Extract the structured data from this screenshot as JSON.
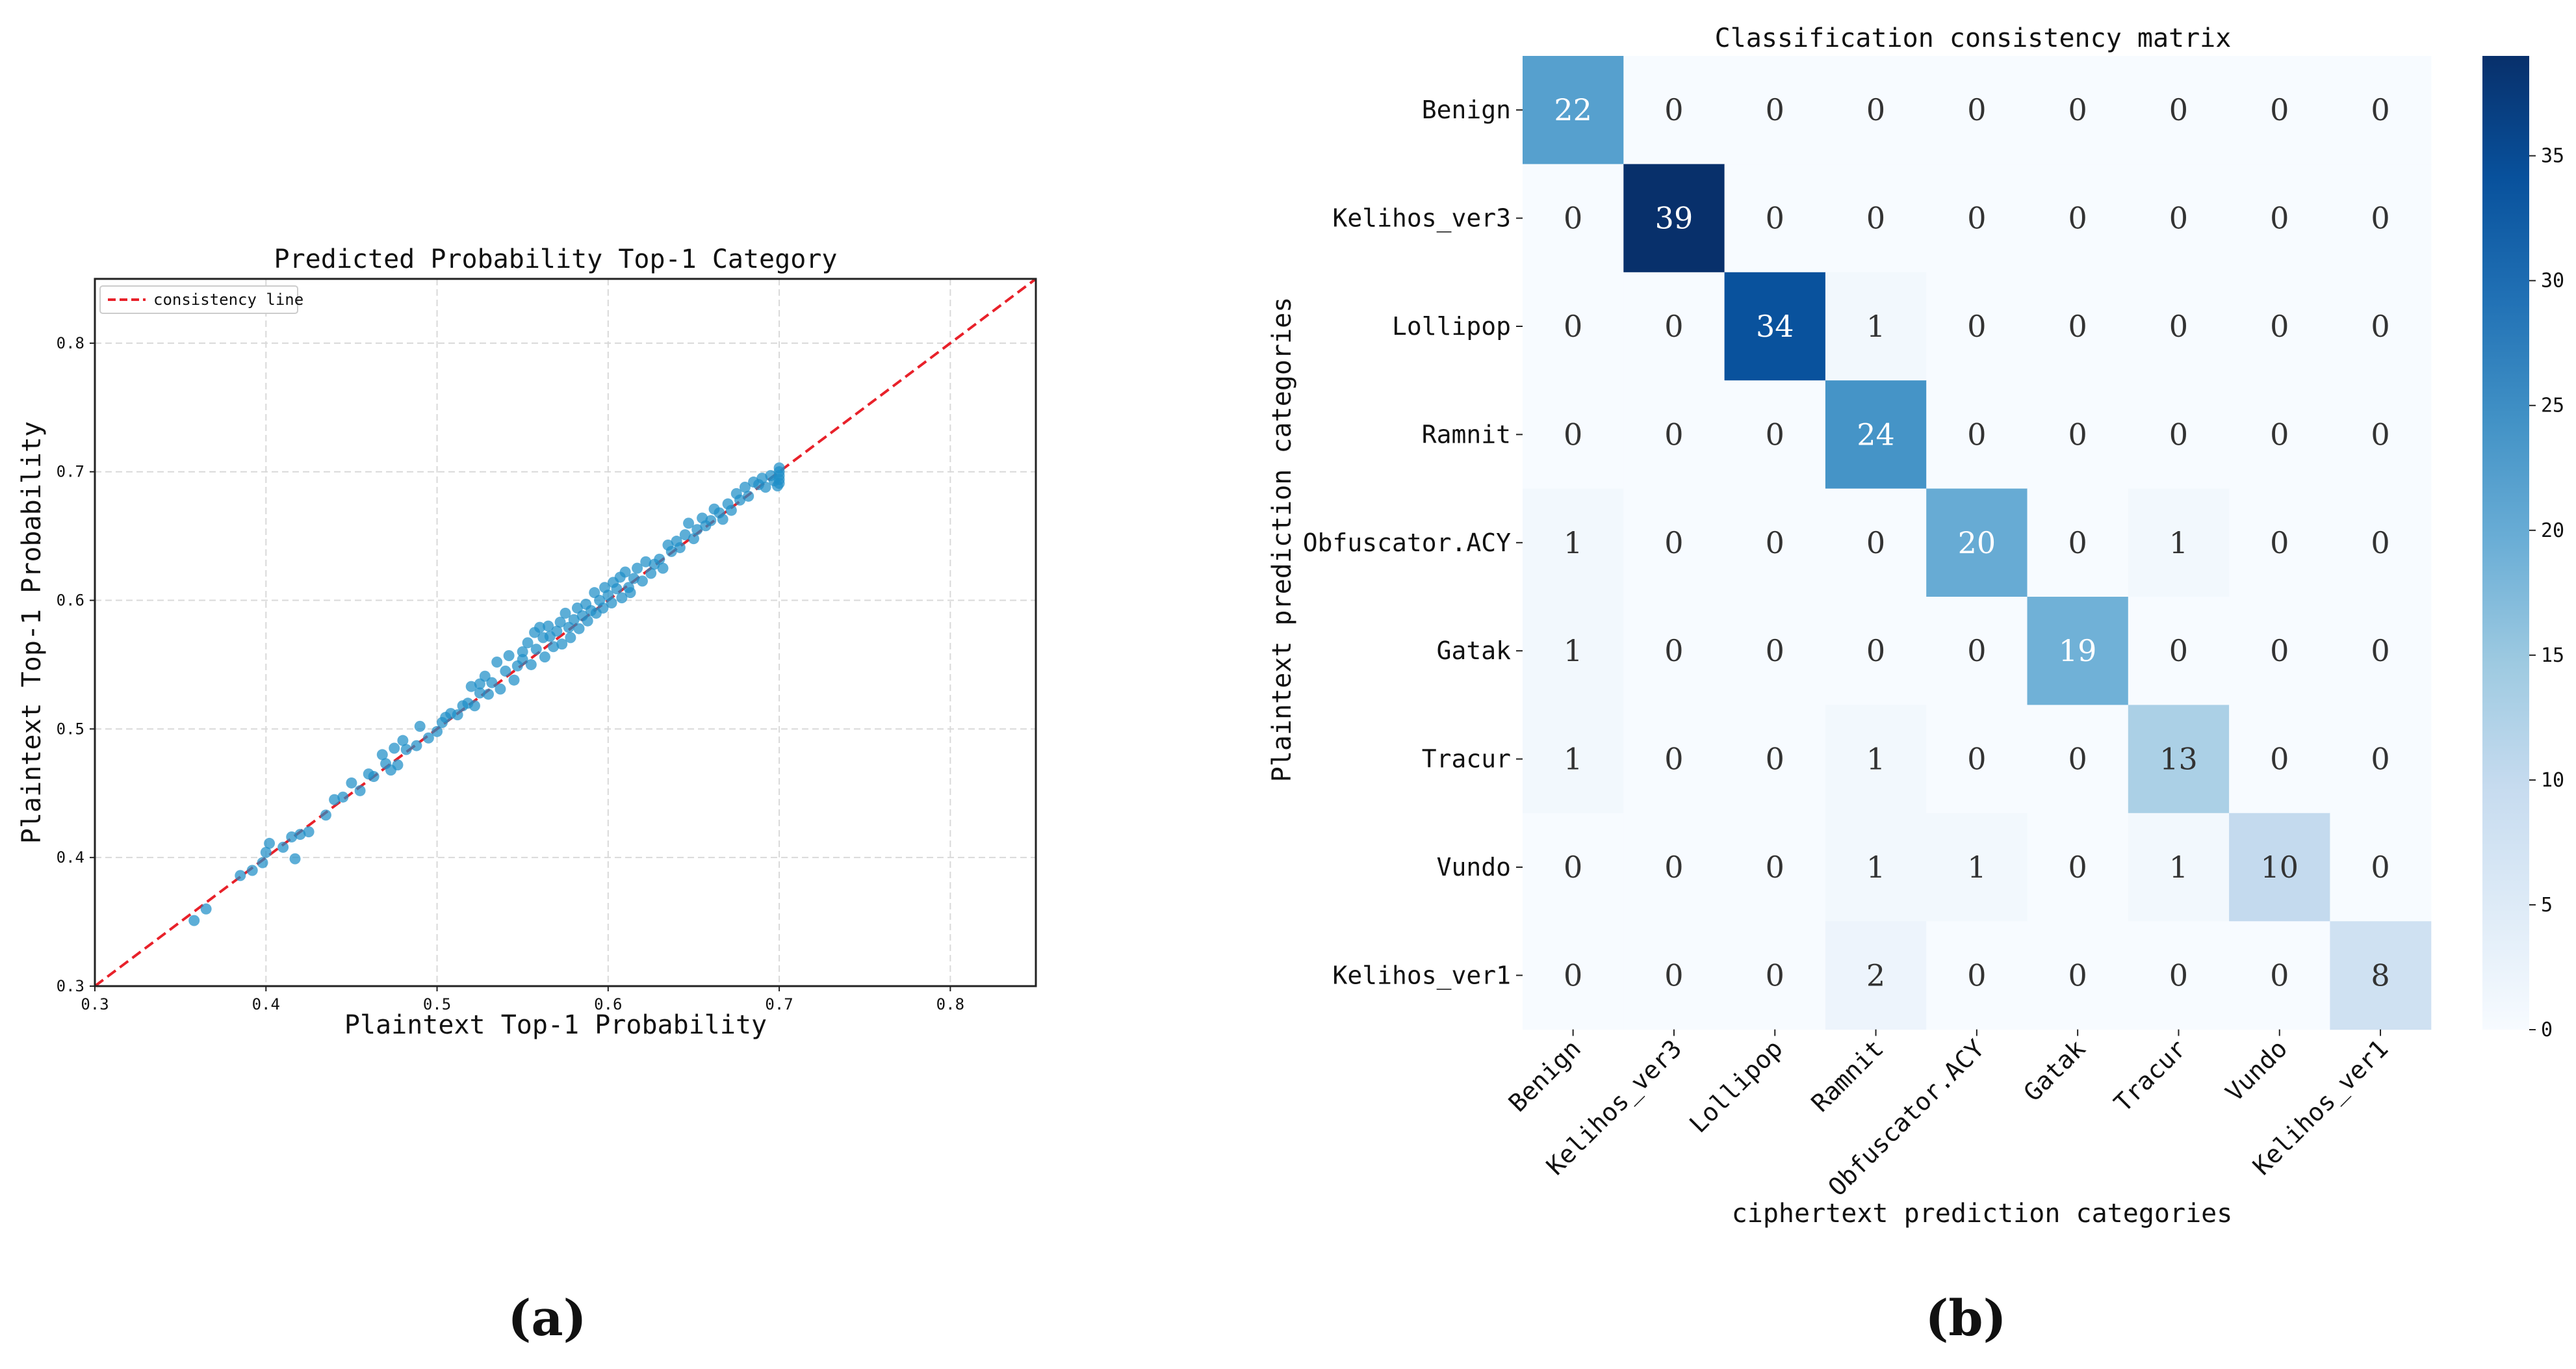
{
  "figure": {
    "panel_a_label": "(a)",
    "panel_b_label": "(b)"
  },
  "chart_data": [
    {
      "type": "scatter",
      "title": "Predicted Probability Top-1 Category",
      "xlabel": "Plaintext Top-1 Probability",
      "ylabel": "Plaintext Top-1 Probability",
      "xlim": [
        0.3,
        0.85
      ],
      "ylim": [
        0.3,
        0.85
      ],
      "xticks": [
        "0.3",
        "0.4",
        "0.5",
        "0.6",
        "0.7",
        "0.8"
      ],
      "yticks": [
        "0.3",
        "0.4",
        "0.5",
        "0.6",
        "0.7",
        "0.8"
      ],
      "grid": true,
      "legend": {
        "position": "top-left",
        "entries": [
          "consistency line"
        ]
      },
      "reference_line": {
        "name": "consistency line",
        "from": [
          0.3,
          0.3
        ],
        "to": [
          0.85,
          0.85
        ],
        "color": "#e8212a",
        "style": "dashed"
      },
      "point_color": "#1f8fc8",
      "points": [
        [
          0.358,
          0.351
        ],
        [
          0.365,
          0.36
        ],
        [
          0.385,
          0.386
        ],
        [
          0.392,
          0.39
        ],
        [
          0.398,
          0.396
        ],
        [
          0.4,
          0.404
        ],
        [
          0.402,
          0.411
        ],
        [
          0.41,
          0.408
        ],
        [
          0.415,
          0.416
        ],
        [
          0.417,
          0.399
        ],
        [
          0.42,
          0.418
        ],
        [
          0.425,
          0.42
        ],
        [
          0.435,
          0.433
        ],
        [
          0.44,
          0.445
        ],
        [
          0.445,
          0.447
        ],
        [
          0.45,
          0.458
        ],
        [
          0.455,
          0.452
        ],
        [
          0.46,
          0.465
        ],
        [
          0.463,
          0.463
        ],
        [
          0.468,
          0.48
        ],
        [
          0.47,
          0.473
        ],
        [
          0.473,
          0.468
        ],
        [
          0.475,
          0.485
        ],
        [
          0.477,
          0.472
        ],
        [
          0.48,
          0.491
        ],
        [
          0.482,
          0.484
        ],
        [
          0.488,
          0.487
        ],
        [
          0.49,
          0.502
        ],
        [
          0.495,
          0.493
        ],
        [
          0.5,
          0.498
        ],
        [
          0.503,
          0.505
        ],
        [
          0.505,
          0.509
        ],
        [
          0.508,
          0.512
        ],
        [
          0.512,
          0.511
        ],
        [
          0.515,
          0.518
        ],
        [
          0.518,
          0.52
        ],
        [
          0.52,
          0.533
        ],
        [
          0.522,
          0.518
        ],
        [
          0.525,
          0.535
        ],
        [
          0.525,
          0.528
        ],
        [
          0.528,
          0.541
        ],
        [
          0.53,
          0.527
        ],
        [
          0.532,
          0.536
        ],
        [
          0.535,
          0.552
        ],
        [
          0.537,
          0.531
        ],
        [
          0.54,
          0.545
        ],
        [
          0.542,
          0.557
        ],
        [
          0.545,
          0.538
        ],
        [
          0.547,
          0.549
        ],
        [
          0.55,
          0.56
        ],
        [
          0.55,
          0.554
        ],
        [
          0.553,
          0.567
        ],
        [
          0.555,
          0.55
        ],
        [
          0.557,
          0.575
        ],
        [
          0.558,
          0.562
        ],
        [
          0.56,
          0.579
        ],
        [
          0.562,
          0.571
        ],
        [
          0.563,
          0.556
        ],
        [
          0.565,
          0.58
        ],
        [
          0.566,
          0.572
        ],
        [
          0.568,
          0.564
        ],
        [
          0.57,
          0.576
        ],
        [
          0.572,
          0.583
        ],
        [
          0.573,
          0.566
        ],
        [
          0.575,
          0.59
        ],
        [
          0.577,
          0.579
        ],
        [
          0.578,
          0.571
        ],
        [
          0.58,
          0.585
        ],
        [
          0.582,
          0.594
        ],
        [
          0.583,
          0.578
        ],
        [
          0.585,
          0.588
        ],
        [
          0.587,
          0.597
        ],
        [
          0.588,
          0.584
        ],
        [
          0.59,
          0.592
        ],
        [
          0.592,
          0.606
        ],
        [
          0.593,
          0.59
        ],
        [
          0.595,
          0.6
        ],
        [
          0.597,
          0.594
        ],
        [
          0.598,
          0.61
        ],
        [
          0.6,
          0.604
        ],
        [
          0.602,
          0.598
        ],
        [
          0.603,
          0.614
        ],
        [
          0.605,
          0.609
        ],
        [
          0.607,
          0.618
        ],
        [
          0.608,
          0.602
        ],
        [
          0.61,
          0.622
        ],
        [
          0.612,
          0.61
        ],
        [
          0.613,
          0.606
        ],
        [
          0.615,
          0.617
        ],
        [
          0.617,
          0.625
        ],
        [
          0.62,
          0.615
        ],
        [
          0.622,
          0.63
        ],
        [
          0.625,
          0.621
        ],
        [
          0.627,
          0.628
        ],
        [
          0.63,
          0.632
        ],
        [
          0.632,
          0.625
        ],
        [
          0.635,
          0.643
        ],
        [
          0.637,
          0.638
        ],
        [
          0.64,
          0.646
        ],
        [
          0.642,
          0.641
        ],
        [
          0.645,
          0.651
        ],
        [
          0.647,
          0.66
        ],
        [
          0.65,
          0.648
        ],
        [
          0.652,
          0.655
        ],
        [
          0.655,
          0.664
        ],
        [
          0.657,
          0.658
        ],
        [
          0.66,
          0.662
        ],
        [
          0.662,
          0.671
        ],
        [
          0.665,
          0.668
        ],
        [
          0.667,
          0.663
        ],
        [
          0.67,
          0.675
        ],
        [
          0.672,
          0.67
        ],
        [
          0.675,
          0.683
        ],
        [
          0.677,
          0.678
        ],
        [
          0.68,
          0.688
        ],
        [
          0.682,
          0.681
        ],
        [
          0.685,
          0.692
        ],
        [
          0.688,
          0.69
        ],
        [
          0.69,
          0.695
        ],
        [
          0.692,
          0.688
        ],
        [
          0.695,
          0.697
        ],
        [
          0.697,
          0.693
        ],
        [
          0.699,
          0.689
        ],
        [
          0.7,
          0.694
        ],
        [
          0.7,
          0.697
        ],
        [
          0.7,
          0.7
        ],
        [
          0.7,
          0.703
        ],
        [
          0.7,
          0.691
        ]
      ]
    },
    {
      "type": "heatmap",
      "title": "Classification consistency matrix",
      "xlabel": "ciphertext prediction categories",
      "ylabel": "Plaintext prediction categories",
      "categories": [
        "Benign",
        "Kelihos_ver3",
        "Lollipop",
        "Ramnit",
        "Obfuscator.ACY",
        "Gatak",
        "Tracur",
        "Vundo",
        "Kelihos_ver1"
      ],
      "values": [
        [
          22,
          0,
          0,
          0,
          0,
          0,
          0,
          0,
          0
        ],
        [
          0,
          39,
          0,
          0,
          0,
          0,
          0,
          0,
          0
        ],
        [
          0,
          0,
          34,
          1,
          0,
          0,
          0,
          0,
          0
        ],
        [
          0,
          0,
          0,
          24,
          0,
          0,
          0,
          0,
          0
        ],
        [
          1,
          0,
          0,
          0,
          20,
          0,
          1,
          0,
          0
        ],
        [
          1,
          0,
          0,
          0,
          0,
          19,
          0,
          0,
          0
        ],
        [
          1,
          0,
          0,
          1,
          0,
          0,
          13,
          0,
          0
        ],
        [
          0,
          0,
          0,
          1,
          1,
          0,
          1,
          10,
          0
        ],
        [
          0,
          0,
          0,
          2,
          0,
          0,
          0,
          0,
          8
        ]
      ],
      "vmin": 0,
      "vmax": 39,
      "colorbar_ticks": [
        "0",
        "5",
        "10",
        "15",
        "20",
        "25",
        "30",
        "35"
      ],
      "colormap": "Blues"
    }
  ]
}
